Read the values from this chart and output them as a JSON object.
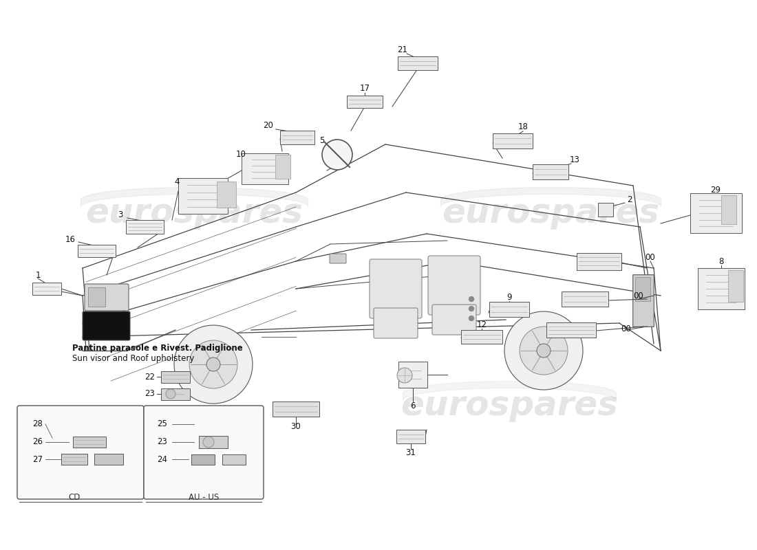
{
  "bg": "#ffffff",
  "watermark": "eurospares",
  "wm_color": "#cccccc",
  "wm_alpha": 0.5,
  "line_color": "#444444",
  "label_color": "#111111",
  "footnote1": "Pantine parasole e Rivest. Padiglione",
  "footnote2": "Sun visor and Roof upholstery",
  "cd_label": "CD",
  "au_us_label": "AU - US",
  "sticker_fc": "#e8e8e8",
  "sticker_ec": "#555555"
}
